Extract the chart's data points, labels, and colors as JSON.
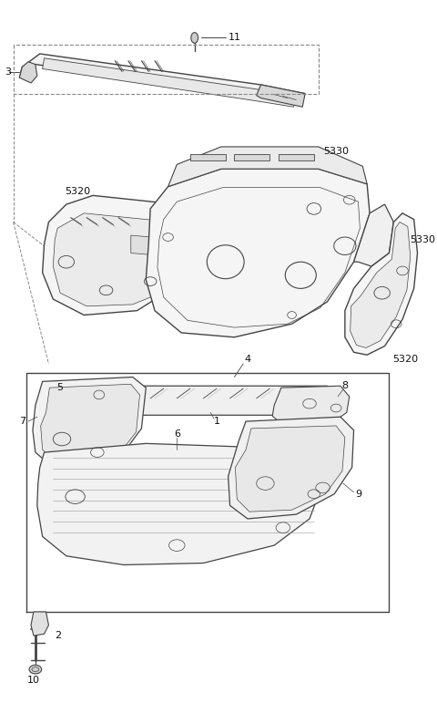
{
  "bg_color": "#ffffff",
  "line_color": "#444444",
  "dash_color": "#666666",
  "label_color": "#111111",
  "fig_width": 4.8,
  "fig_height": 7.94,
  "dpi": 100
}
